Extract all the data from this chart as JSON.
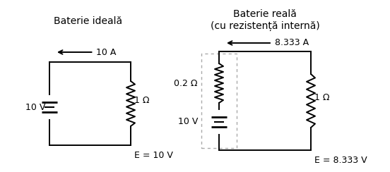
{
  "title_left": "Baterie ideală",
  "title_right": "Baterie reală\n(cu rezistență internă)",
  "bg_color": "#ffffff",
  "line_color": "#000000",
  "text_color": "#000000",
  "font_size": 10,
  "font_size_small": 9,
  "left_circuit": {
    "battery_label": "10 V",
    "resistor_label": "1 Ω",
    "energy_label": "E = 10 V",
    "current_label": "10 A"
  },
  "right_circuit": {
    "battery_label": "10 V",
    "internal_r_label": "0.2 Ω",
    "resistor_label": "1 Ω",
    "energy_label": "E = 8.333 V",
    "current_label": "8.333 A"
  }
}
